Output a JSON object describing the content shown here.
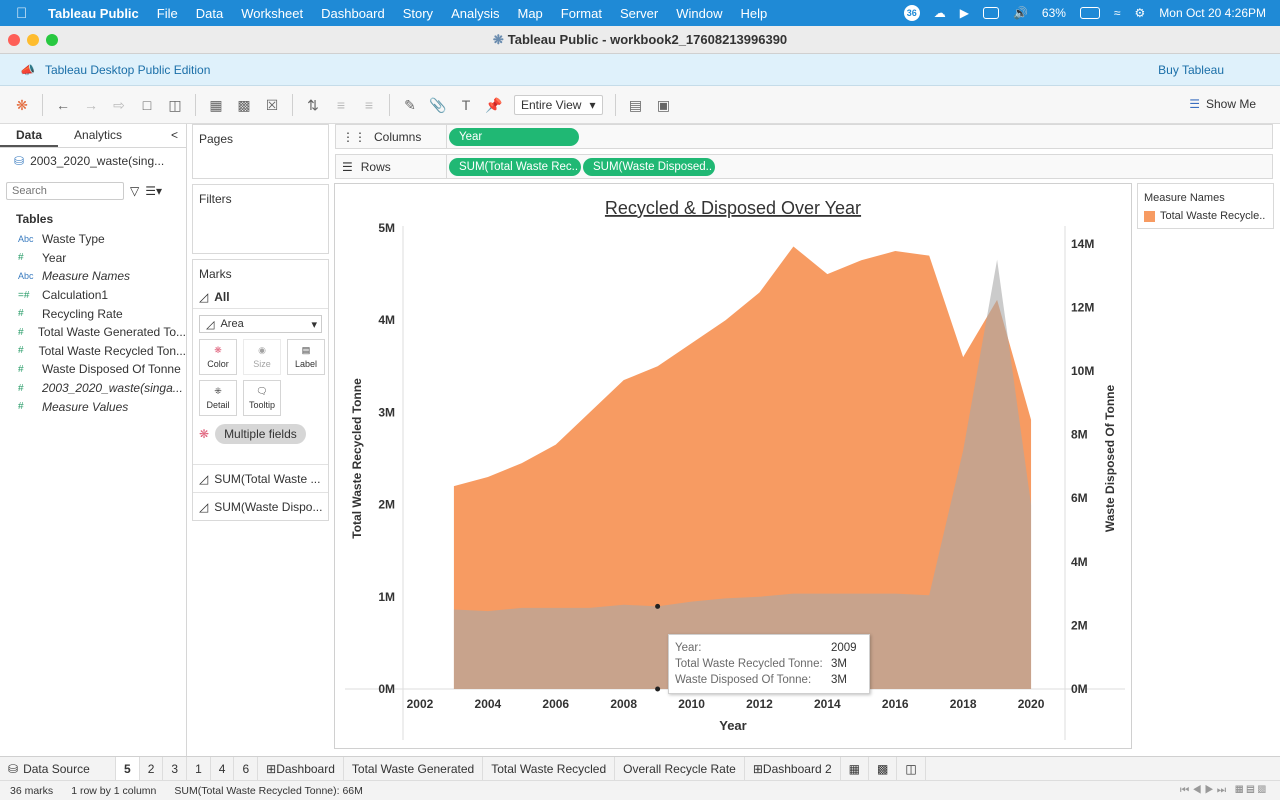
{
  "menubar": {
    "app": "Tableau Public",
    "items": [
      "File",
      "Data",
      "Worksheet",
      "Dashboard",
      "Story",
      "Analysis",
      "Map",
      "Format",
      "Server",
      "Window",
      "Help"
    ],
    "battery": "63%",
    "clock": "Mon Oct 20  4:26PM",
    "badge": "36"
  },
  "window": {
    "title": "Tableau Public - workbook2_17608213996390"
  },
  "banner": {
    "edition": "Tableau Desktop Public Edition",
    "buy": "Buy Tableau"
  },
  "toolbar": {
    "fit": "Entire View",
    "show_me": "Show Me"
  },
  "left_pane": {
    "tabs": [
      "Data",
      "Analytics"
    ],
    "datasource": "2003_2020_waste(sing...",
    "search_placeholder": "Search",
    "tables_label": "Tables",
    "fields": [
      {
        "type": "Abc",
        "name": "Waste Type",
        "italic": false
      },
      {
        "type": "#",
        "name": "Year",
        "italic": false
      },
      {
        "type": "Abc",
        "name": "Measure Names",
        "italic": true
      },
      {
        "type": "=#",
        "name": "Calculation1",
        "italic": false
      },
      {
        "type": "#",
        "name": "Recycling Rate",
        "italic": false
      },
      {
        "type": "#",
        "name": "Total Waste Generated To...",
        "italic": false
      },
      {
        "type": "#",
        "name": "Total Waste Recycled Ton...",
        "italic": false
      },
      {
        "type": "#",
        "name": "Waste Disposed Of Tonne",
        "italic": false
      },
      {
        "type": "#",
        "name": "2003_2020_waste(singa...",
        "italic": true
      },
      {
        "type": "#",
        "name": "Measure Values",
        "italic": true
      }
    ]
  },
  "shelves": {
    "pages": "Pages",
    "filters": "Filters",
    "marks": "Marks",
    "marks_all": "All",
    "mark_type": "Area",
    "buttons": [
      "Color",
      "Size",
      "Label",
      "Detail",
      "Tooltip"
    ],
    "multiple_fields": "Multiple fields",
    "measures": [
      "SUM(Total Waste ...",
      "SUM(Waste Dispo..."
    ],
    "columns_label": "Columns",
    "rows_label": "Rows",
    "columns_pills": [
      "Year"
    ],
    "rows_pills": [
      "SUM(Total Waste Rec..",
      "SUM(Waste Disposed.."
    ]
  },
  "legend": {
    "title": "Measure Names",
    "item": "Total Waste Recycle.."
  },
  "chart_data": {
    "type": "area",
    "title": "Recycled & Disposed Over Year",
    "xlabel": "Year",
    "ylabel_left": "Total Waste Recycled Tonne",
    "ylabel_right": "Waste Disposed Of Tonne",
    "x_ticks": [
      "2002",
      "2004",
      "2006",
      "2008",
      "2010",
      "2012",
      "2014",
      "2016",
      "2018",
      "2020"
    ],
    "y_left_ticks": [
      "0M",
      "1M",
      "2M",
      "3M",
      "4M",
      "5M"
    ],
    "y_right_ticks": [
      "0M",
      "2M",
      "4M",
      "6M",
      "8M",
      "10M",
      "12M",
      "14M"
    ],
    "xlim": [
      2001.5,
      2021
    ],
    "ylim_left": [
      0,
      5000000
    ],
    "ylim_right": [
      0,
      14500000
    ],
    "colors": {
      "recycled": "#f79b62",
      "disposed": "#a8a8a8"
    },
    "x": [
      2003,
      2004,
      2005,
      2006,
      2007,
      2008,
      2009,
      2010,
      2011,
      2012,
      2013,
      2014,
      2015,
      2016,
      2017,
      2018,
      2019,
      2020
    ],
    "series": [
      {
        "name": "Total Waste Recycled Tonne",
        "axis": "left",
        "values": [
          2200000,
          2300000,
          2450000,
          2650000,
          3000000,
          3350000,
          3500000,
          3750000,
          4000000,
          4300000,
          4800000,
          4500000,
          4650000,
          4750000,
          4700000,
          3600000,
          4220000,
          2920000
        ]
      },
      {
        "name": "Waste Disposed Of Tonne",
        "axis": "right",
        "values": [
          2500000,
          2450000,
          2550000,
          2550000,
          2550000,
          2650000,
          2600000,
          2750000,
          2850000,
          2900000,
          3000000,
          3000000,
          3000000,
          3000000,
          2950000,
          7500000,
          13500000,
          5800000
        ]
      }
    ]
  },
  "tooltip": {
    "rows": [
      {
        "key": "Year:",
        "value": "2009"
      },
      {
        "key": "Total Waste Recycled Tonne:",
        "value": "3M"
      },
      {
        "key": "Waste Disposed Of Tonne:",
        "value": "3M"
      }
    ]
  },
  "sheet_tabs": {
    "data_source": "Data Source",
    "tabs": [
      "5",
      "2",
      "3",
      "1",
      "4",
      "6",
      "Dashboard",
      "Total Waste Generated",
      "Total Waste Recycled",
      "Overall Recycle Rate",
      "Dashboard 2"
    ],
    "active": "5"
  },
  "status": {
    "marks": "36 marks",
    "shape": "1 row by 1 column",
    "sum": "SUM(Total Waste Recycled Tonne): 66M"
  }
}
